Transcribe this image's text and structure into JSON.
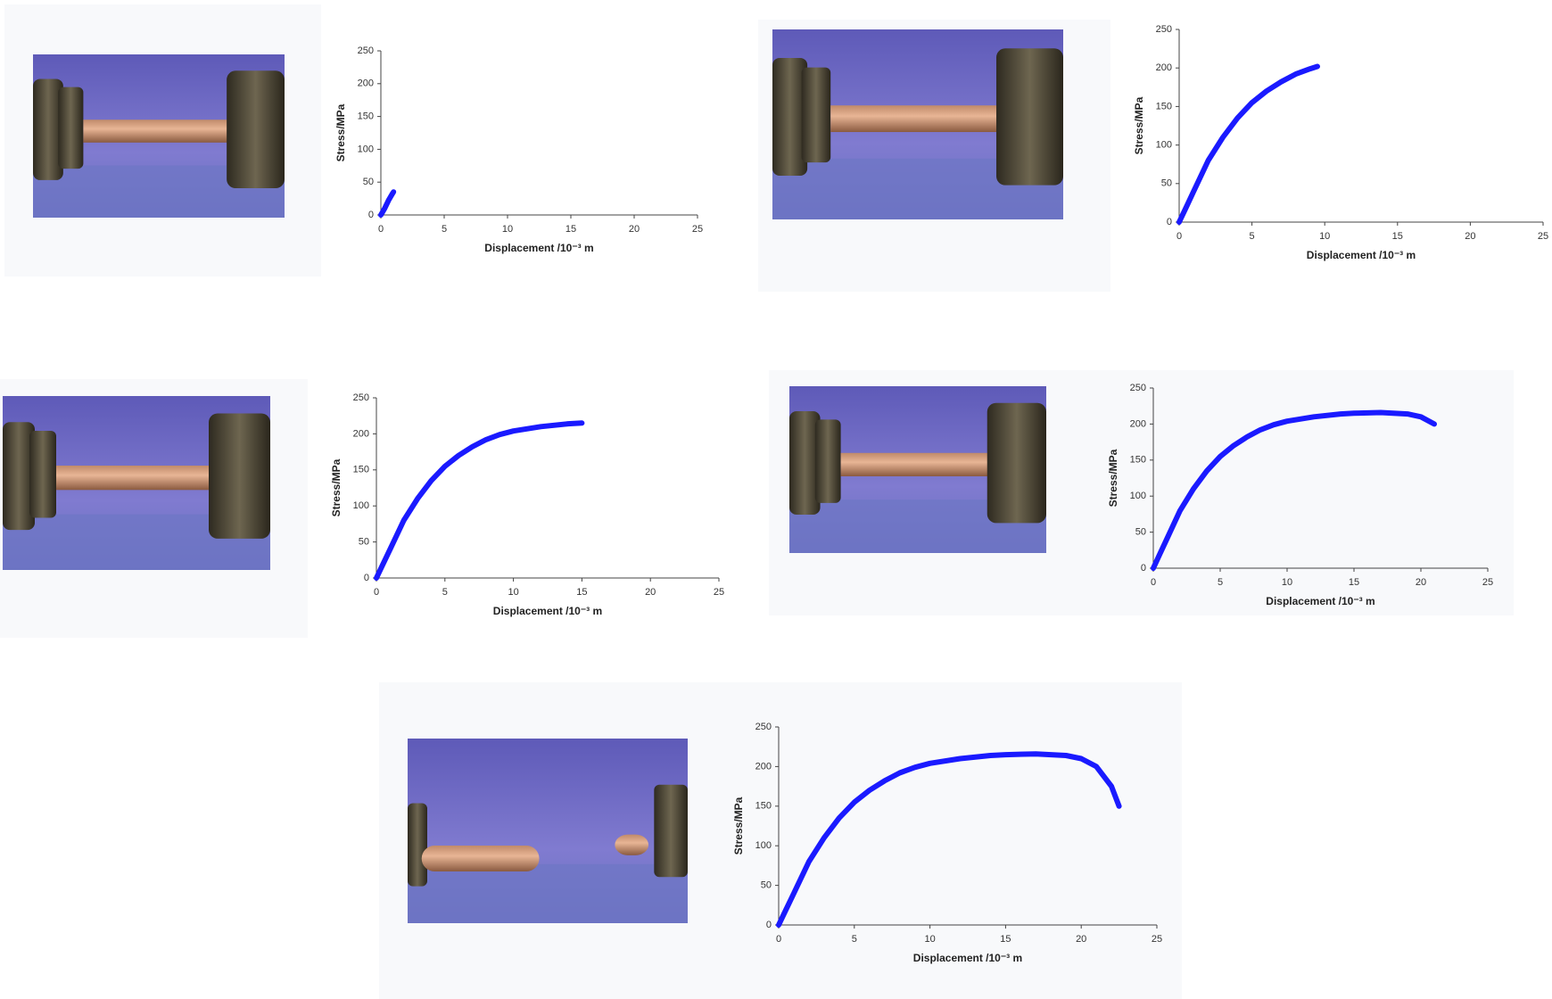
{
  "chart_data": [
    {
      "type": "line",
      "y_label": "Stress/MPa",
      "x_label": "Displacement /10⁻³ m",
      "color": "#1a1aff",
      "x": [
        0,
        0.3,
        0.6,
        0.9,
        1.0
      ],
      "values": [
        0,
        10,
        22,
        32,
        35
      ],
      "xlim": [
        0,
        25
      ],
      "xticks": [
        0,
        5,
        10,
        15,
        20,
        25
      ],
      "ylim": [
        0,
        250
      ],
      "yticks": [
        0,
        50,
        100,
        150,
        200,
        250
      ]
    },
    {
      "type": "line",
      "y_label": "Stress/MPa",
      "x_label": "Displacement /10⁻³ m",
      "color": "#1a1aff",
      "x": [
        0,
        0.5,
        1,
        2,
        3,
        4,
        5,
        6,
        7,
        8,
        9,
        9.5
      ],
      "values": [
        0,
        20,
        40,
        80,
        110,
        135,
        155,
        170,
        182,
        192,
        199,
        202
      ],
      "xlim": [
        0,
        25
      ],
      "xticks": [
        0,
        5,
        10,
        15,
        20,
        25
      ],
      "ylim": [
        0,
        250
      ],
      "yticks": [
        0,
        50,
        100,
        150,
        200,
        250
      ]
    },
    {
      "type": "line",
      "y_label": "Stress/MPa",
      "x_label": "Displacement /10⁻³ m",
      "color": "#1a1aff",
      "x": [
        0,
        0.5,
        1,
        2,
        3,
        4,
        5,
        6,
        7,
        8,
        9,
        10,
        12,
        14,
        15
      ],
      "values": [
        0,
        20,
        40,
        80,
        110,
        135,
        155,
        170,
        182,
        192,
        199,
        204,
        210,
        214,
        215
      ],
      "xlim": [
        0,
        25
      ],
      "xticks": [
        0,
        5,
        10,
        15,
        20,
        25
      ],
      "ylim": [
        0,
        250
      ],
      "yticks": [
        0,
        50,
        100,
        150,
        200,
        250
      ]
    },
    {
      "type": "line",
      "y_label": "Stress/MPa",
      "x_label": "Displacement /10⁻³ m",
      "color": "#1a1aff",
      "x": [
        0,
        0.5,
        1,
        2,
        3,
        4,
        5,
        6,
        7,
        8,
        9,
        10,
        12,
        14,
        15,
        17,
        19,
        20,
        21
      ],
      "values": [
        0,
        20,
        40,
        80,
        110,
        135,
        155,
        170,
        182,
        192,
        199,
        204,
        210,
        214,
        215,
        216,
        214,
        210,
        200
      ],
      "xlim": [
        0,
        25
      ],
      "xticks": [
        0,
        5,
        10,
        15,
        20,
        25
      ],
      "ylim": [
        0,
        250
      ],
      "yticks": [
        0,
        50,
        100,
        150,
        200,
        250
      ]
    },
    {
      "type": "line",
      "y_label": "Stress/MPa",
      "x_label": "Displacement /10⁻³ m",
      "color": "#1a1aff",
      "x": [
        0,
        0.5,
        1,
        2,
        3,
        4,
        5,
        6,
        7,
        8,
        9,
        10,
        12,
        14,
        15,
        17,
        19,
        20,
        21,
        22,
        22.5
      ],
      "values": [
        0,
        20,
        40,
        80,
        110,
        135,
        155,
        170,
        182,
        192,
        199,
        204,
        210,
        214,
        215,
        216,
        214,
        210,
        200,
        175,
        150
      ],
      "xlim": [
        0,
        25
      ],
      "xticks": [
        0,
        5,
        10,
        15,
        20,
        25
      ],
      "ylim": [
        0,
        250
      ],
      "yticks": [
        0,
        50,
        100,
        150,
        200,
        250
      ]
    }
  ]
}
